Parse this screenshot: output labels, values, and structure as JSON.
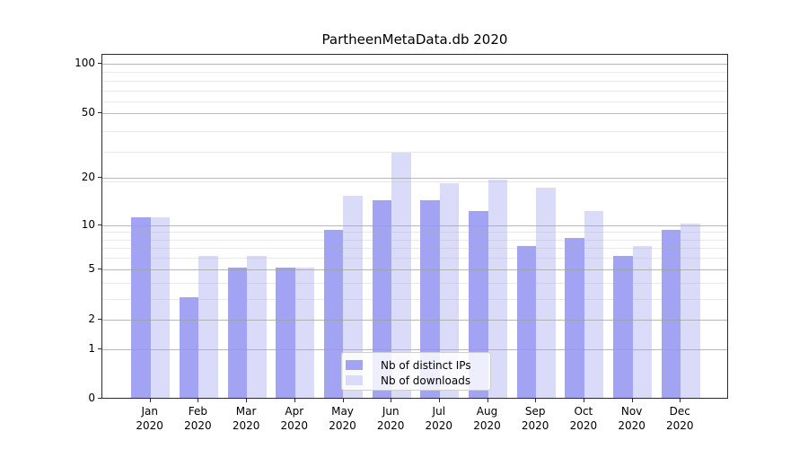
{
  "chart_data": {
    "type": "bar",
    "title": "PartheenMetaData.db 2020",
    "categories": [
      "Jan",
      "Feb",
      "Mar",
      "Apr",
      "May",
      "Jun",
      "Jul",
      "Aug",
      "Sep",
      "Oct",
      "Nov",
      "Dec"
    ],
    "x_tick_line2": "2020",
    "series": [
      {
        "name": "Nb of distinct IPs",
        "color": "#a3a3f3",
        "values": [
          11,
          3,
          5,
          5,
          9,
          14,
          14,
          12,
          7,
          8,
          6,
          9
        ]
      },
      {
        "name": "Nb of downloads",
        "color": "#dadaf9",
        "values": [
          11,
          6,
          6,
          5,
          15,
          28,
          18,
          19,
          17,
          12,
          7,
          10
        ]
      }
    ],
    "y_axis": {
      "scale": "log10(value+1)",
      "ticks": [
        0,
        1,
        2,
        5,
        10,
        20,
        50,
        100
      ],
      "minor_gridline_values": [
        3,
        4,
        6,
        7,
        8,
        9,
        19,
        29,
        39,
        59,
        69,
        79,
        89
      ],
      "top_value": 113
    },
    "legend_position": "lower center",
    "grid": "both"
  }
}
